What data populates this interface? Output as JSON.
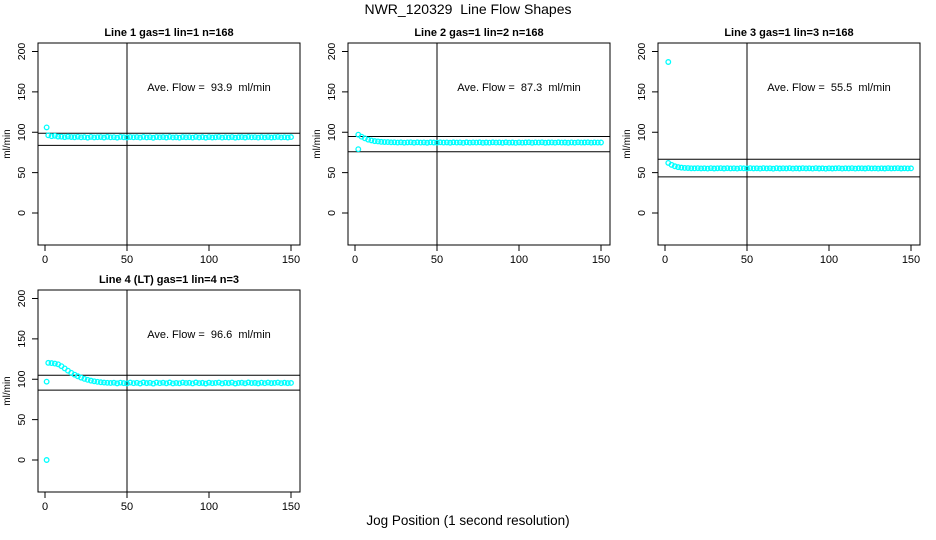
{
  "chart_data": {
    "type": "scatter",
    "title": "NWR_120329  Line Flow Shapes",
    "xlabel": "Jog Position (1 second resolution)",
    "ylabel": "ml/min",
    "x_ticks": [
      0,
      50,
      100,
      150
    ],
    "y_ticks": [
      0,
      50,
      100,
      150,
      200
    ],
    "xlim": [
      -5,
      156
    ],
    "ylim": [
      -40,
      211
    ],
    "grid": false,
    "legend": "none",
    "point_color": "#00FFFF",
    "axis_color": "#000000",
    "vline_x": 50,
    "annotation_anchor": {
      "x": 100,
      "y": 151
    },
    "panels": [
      {
        "title": "Line 1 gas=1 lin=1 n=168",
        "annotation": "Ave. Flow =  93.9  ml/min",
        "ave_flow_ml_min": 93.9,
        "hlines": [
          98.8,
          83.8
        ],
        "outliers": [
          [
            1,
            106
          ]
        ],
        "x_start": 2,
        "x_step": 2,
        "y": [
          96.2,
          95.1,
          95.6,
          94.6,
          94.5,
          93.9,
          94.6,
          94.1,
          93.8,
          94.4,
          93.7,
          94.0,
          93.3,
          94.2,
          93.6,
          93.9,
          94.1,
          93.5,
          94.3,
          93.7,
          93.9,
          93.3,
          94.2,
          93.8,
          93.5,
          94.1,
          93.7,
          94.0,
          93.4,
          94.2,
          93.6,
          93.9,
          93.2,
          94.1,
          93.7,
          94.0,
          93.5,
          94.2,
          93.6,
          93.8,
          93.3,
          94.1,
          93.7,
          93.9,
          93.4,
          94.2,
          93.6,
          94.0,
          93.3,
          94.1,
          93.5,
          93.8,
          94.2,
          93.4,
          93.9,
          93.6,
          94.1,
          93.3,
          93.8,
          94.0,
          93.5,
          94.2,
          93.7,
          93.9,
          93.4,
          94.0,
          93.6,
          94.1,
          93.5,
          93.8,
          94.2,
          93.6,
          93.9,
          93.5,
          94.0
        ]
      },
      {
        "title": "Line 2 gas=1 lin=2 n=168",
        "annotation": "Ave. Flow =  87.3  ml/min",
        "ave_flow_ml_min": 87.3,
        "hlines": [
          94.8,
          75.8
        ],
        "outliers": [
          [
            2,
            79
          ]
        ],
        "x_start": 2,
        "x_step": 2,
        "y": [
          97.0,
          94.5,
          92.5,
          90.8,
          89.9,
          89.0,
          88.6,
          88.1,
          87.9,
          87.8,
          87.5,
          87.6,
          87.2,
          87.5,
          87.1,
          87.4,
          87.6,
          87.1,
          87.5,
          87.2,
          87.4,
          87.0,
          87.5,
          87.3,
          87.1,
          87.5,
          87.2,
          87.4,
          87.0,
          87.5,
          87.2,
          87.4,
          86.9,
          87.5,
          87.1,
          87.4,
          87.2,
          87.5,
          87.0,
          87.3,
          87.1,
          87.5,
          87.2,
          87.4,
          87.0,
          87.5,
          87.1,
          87.3,
          86.9,
          87.4,
          87.1,
          87.3,
          87.5,
          87.0,
          87.4,
          87.2,
          87.5,
          87.0,
          87.3,
          87.4,
          87.1,
          87.5,
          87.2,
          87.3,
          87.0,
          87.4,
          87.1,
          87.5,
          87.2,
          87.3,
          87.5,
          87.1,
          87.4,
          87.2,
          87.3
        ]
      },
      {
        "title": "Line 3 gas=1 lin=3 n=168",
        "annotation": "Ave. Flow =  55.5  ml/min",
        "ave_flow_ml_min": 55.5,
        "hlines": [
          66.5,
          44.8
        ],
        "outliers": [
          [
            2,
            187
          ]
        ],
        "x_start": 2,
        "x_step": 2,
        "y": [
          62.0,
          59.6,
          57.9,
          56.8,
          56.2,
          55.8,
          55.7,
          55.4,
          55.3,
          55.5,
          55.2,
          55.4,
          55.0,
          55.5,
          55.1,
          55.4,
          55.5,
          55.1,
          55.5,
          55.2,
          55.4,
          55.0,
          55.5,
          55.3,
          55.1,
          55.5,
          55.2,
          55.4,
          55.0,
          55.5,
          55.2,
          55.4,
          54.9,
          55.5,
          55.1,
          55.4,
          55.2,
          55.5,
          55.0,
          55.3,
          55.1,
          55.5,
          55.2,
          55.4,
          55.0,
          55.5,
          55.1,
          55.3,
          54.9,
          55.4,
          55.1,
          55.3,
          55.5,
          55.0,
          55.4,
          55.2,
          55.5,
          55.0,
          55.3,
          55.4,
          55.1,
          55.5,
          55.2,
          55.3,
          55.0,
          55.4,
          55.1,
          55.5,
          55.2,
          55.3,
          55.5,
          55.1,
          55.4,
          55.2,
          55.3
        ]
      },
      {
        "title": "Line 4 (LT) gas=1 lin=4 n=3",
        "annotation": "Ave. Flow =  96.6  ml/min",
        "ave_flow_ml_min": 96.6,
        "hlines": [
          105.0,
          86.5
        ],
        "outliers": [
          [
            1,
            97
          ],
          [
            1,
            0
          ]
        ],
        "x_start": 2,
        "x_step": 2,
        "y": [
          120.3,
          120.0,
          119.4,
          118.5,
          116.2,
          113.4,
          110.6,
          108.0,
          105.7,
          103.7,
          102.0,
          100.5,
          99.3,
          98.3,
          97.5,
          96.8,
          96.3,
          95.9,
          95.6,
          95.4,
          95.7,
          94.9,
          95.8,
          95.2,
          94.8,
          95.9,
          95.1,
          95.6,
          94.7,
          96.0,
          95.2,
          95.6,
          94.6,
          95.9,
          95.1,
          95.7,
          95.0,
          96.0,
          94.8,
          95.4,
          95.0,
          95.9,
          95.3,
          95.6,
          94.8,
          96.0,
          95.1,
          95.5,
          94.7,
          95.8,
          95.1,
          95.4,
          95.9,
          94.8,
          95.6,
          95.2,
          95.9,
          94.7,
          95.4,
          95.7,
          95.0,
          96.0,
          95.3,
          95.5,
          94.9,
          95.8,
          95.1,
          95.9,
          95.2,
          95.4,
          95.9,
          95.1,
          95.7,
          95.2,
          95.4
        ]
      }
    ]
  }
}
